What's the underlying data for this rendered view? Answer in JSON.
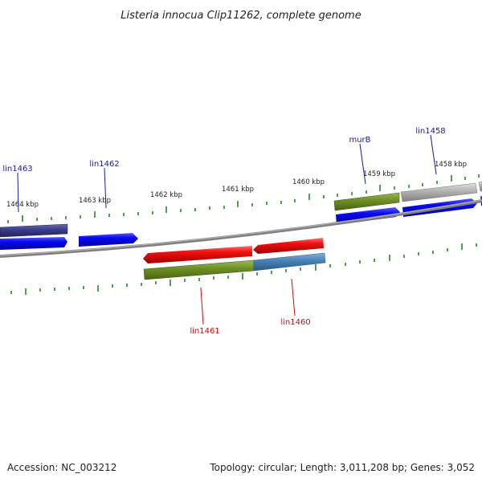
{
  "title": "Listeria innocua Clip11262, complete genome",
  "footer": {
    "accession": "Accession: NC_003212",
    "info": "Topology: circular; Length: 3,011,208 bp; Genes: 3,052"
  },
  "scale": {
    "ticks": [
      "1464 kbp",
      "1463 kbp",
      "1462 kbp",
      "1461 kbp",
      "1460 kbp",
      "1459 kbp",
      "1458 kbp"
    ]
  },
  "genes": {
    "lin1463": "lin1463",
    "lin1462": "lin1462",
    "murB": "murB",
    "lin1458": "lin1458",
    "lin1461": "lin1461",
    "lin1460": "lin1460"
  },
  "colors": {
    "gene_forward": "#0a0af0",
    "gene_reverse": "#f01010",
    "cds_olive": "#6b8e23",
    "cds_steel": "#4682b4",
    "cds_navy": "#3a3a8a",
    "cds_gray": "#b0b0b0",
    "backbone": "#808080",
    "ticks": "#228b22"
  }
}
